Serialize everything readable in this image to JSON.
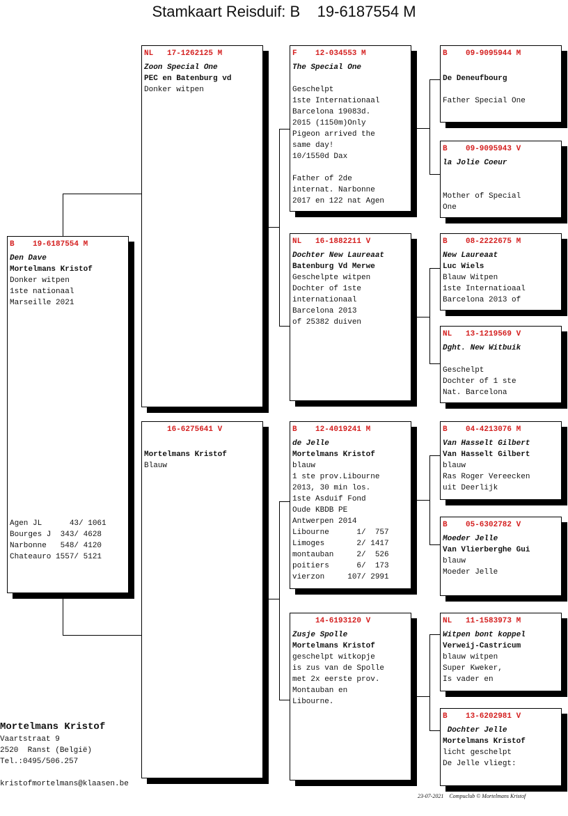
{
  "title": "Stamkaart Reisduif: B    19-6187554 M",
  "subject": {
    "country": "B",
    "ring": "19-6187554",
    "sex": "M",
    "lines": [
      {
        "t": "Den Dave",
        "s": "bi"
      },
      {
        "t": "Mortelmans Kristof",
        "s": "b"
      },
      {
        "t": "Donker witpen",
        "s": "n"
      },
      {
        "t": "1ste nationaal",
        "s": "n"
      },
      {
        "t": "Marseille 2021",
        "s": "n"
      }
    ],
    "results": [
      "Agen JL      43/ 1061",
      "Bourges J  343/ 4628",
      "Narbonne   548/ 4120",
      "Chateauro 1557/ 5121"
    ]
  },
  "sire": {
    "country": "NL",
    "ring": "17-1262125",
    "sex": "M",
    "lines": [
      {
        "t": "Zoon Special One",
        "s": "bi"
      },
      {
        "t": "PEC en Batenburg vd",
        "s": "b"
      },
      {
        "t": "Donker witpen",
        "s": "n"
      }
    ]
  },
  "dam": {
    "country": "",
    "ring": "16-6275641",
    "sex": "V",
    "lines": [
      {
        "t": "",
        "s": "n"
      },
      {
        "t": "Mortelmans Kristof",
        "s": "b"
      },
      {
        "t": "Blauw",
        "s": "n"
      }
    ]
  },
  "gen2": [
    {
      "country": "F",
      "ring": "12-034553",
      "sex": "M",
      "lines": [
        {
          "t": "The Special One",
          "s": "bi"
        },
        {
          "t": "",
          "s": "n"
        },
        {
          "t": "Geschelpt",
          "s": "n"
        },
        {
          "t": "1ste Internationaal",
          "s": "n"
        },
        {
          "t": "Barcelona 19083d.",
          "s": "n"
        },
        {
          "t": "2015 (1150m)Only",
          "s": "n"
        },
        {
          "t": "Pigeon arrived the",
          "s": "n"
        },
        {
          "t": "same day!",
          "s": "n"
        },
        {
          "t": "10/1550d Dax",
          "s": "n"
        },
        {
          "t": "",
          "s": "n"
        },
        {
          "t": "Father of 2de",
          "s": "n"
        },
        {
          "t": "internat. Narbonne",
          "s": "n"
        },
        {
          "t": "2017 en 122 nat Agen",
          "s": "n"
        }
      ]
    },
    {
      "country": "NL",
      "ring": "16-1882211",
      "sex": "V",
      "lines": [
        {
          "t": "Dochter New Laureaat",
          "s": "bi"
        },
        {
          "t": "Batenburg Vd Merwe",
          "s": "b"
        },
        {
          "t": "Geschelpte witpen",
          "s": "n"
        },
        {
          "t": "Dochter of 1ste",
          "s": "n"
        },
        {
          "t": "internationaal",
          "s": "n"
        },
        {
          "t": "Barcelona 2013",
          "s": "n"
        },
        {
          "t": "of 25382 duiven",
          "s": "n"
        }
      ]
    },
    {
      "country": "B",
      "ring": "12-4019241",
      "sex": "M",
      "lines": [
        {
          "t": "de Jelle",
          "s": "bi"
        },
        {
          "t": "Mortelmans Kristof",
          "s": "b"
        },
        {
          "t": "blauw",
          "s": "n"
        },
        {
          "t": "1 ste prov.Libourne",
          "s": "n"
        },
        {
          "t": "2013, 30 min los.",
          "s": "n"
        },
        {
          "t": "1ste Asduif Fond",
          "s": "n"
        },
        {
          "t": "Oude KBDB PE",
          "s": "n"
        },
        {
          "t": "Antwerpen 2014",
          "s": "n"
        },
        {
          "t": "Libourne      1/  757",
          "s": "n"
        },
        {
          "t": "Limoges       2/ 1417",
          "s": "n"
        },
        {
          "t": "montauban     2/  526",
          "s": "n"
        },
        {
          "t": "poitiers      6/  173",
          "s": "n"
        },
        {
          "t": "vierzon     107/ 2991",
          "s": "n"
        }
      ]
    },
    {
      "country": "",
      "ring": "14-6193120",
      "sex": "V",
      "lines": [
        {
          "t": "Zusje Spolle",
          "s": "bi"
        },
        {
          "t": "Mortelmans Kristof",
          "s": "b"
        },
        {
          "t": "geschelpt witkopje",
          "s": "n"
        },
        {
          "t": "is zus van de Spolle",
          "s": "n"
        },
        {
          "t": "met 2x eerste prov.",
          "s": "n"
        },
        {
          "t": "Montauban en",
          "s": "n"
        },
        {
          "t": "Libourne.",
          "s": "n"
        }
      ]
    }
  ],
  "gen3": [
    {
      "country": "B",
      "ring": "09-9095944",
      "sex": "M",
      "lines": [
        {
          "t": "",
          "s": "n"
        },
        {
          "t": "De Deneufbourg",
          "s": "b"
        },
        {
          "t": "",
          "s": "n"
        },
        {
          "t": "Father Special One",
          "s": "n"
        }
      ]
    },
    {
      "country": "B",
      "ring": "09-9095943",
      "sex": "V",
      "lines": [
        {
          "t": "la Jolie Coeur",
          "s": "bi"
        },
        {
          "t": "",
          "s": "n"
        },
        {
          "t": "",
          "s": "n"
        },
        {
          "t": "Mother of Special",
          "s": "n"
        },
        {
          "t": "One",
          "s": "n"
        }
      ]
    },
    {
      "country": "B",
      "ring": "08-2222675",
      "sex": "M",
      "lines": [
        {
          "t": "New Laureaat",
          "s": "bi"
        },
        {
          "t": "Luc Wiels",
          "s": "b"
        },
        {
          "t": "Blauw Witpen",
          "s": "n"
        },
        {
          "t": "1ste Internatioaal",
          "s": "n"
        },
        {
          "t": "Barcelona 2013 of",
          "s": "n"
        }
      ]
    },
    {
      "country": "NL",
      "ring": "13-1219569",
      "sex": "V",
      "lines": [
        {
          "t": "Dght. New Witbuik",
          "s": "bi"
        },
        {
          "t": "",
          "s": "n"
        },
        {
          "t": "Geschelpt",
          "s": "n"
        },
        {
          "t": "Dochter of 1 ste",
          "s": "n"
        },
        {
          "t": "Nat. Barcelona",
          "s": "n"
        }
      ]
    },
    {
      "country": "B",
      "ring": "04-4213076",
      "sex": "M",
      "lines": [
        {
          "t": "Van Hasselt Gilbert",
          "s": "bi"
        },
        {
          "t": "Van Hasselt Gilbert",
          "s": "b"
        },
        {
          "t": "blauw",
          "s": "n"
        },
        {
          "t": "Ras Roger Vereecken",
          "s": "n"
        },
        {
          "t": "uit Deerlijk",
          "s": "n"
        }
      ]
    },
    {
      "country": "B",
      "ring": "05-6302782",
      "sex": "V",
      "lines": [
        {
          "t": "Moeder Jelle",
          "s": "bi"
        },
        {
          "t": "Van Vlierberghe Gui",
          "s": "b"
        },
        {
          "t": "blauw",
          "s": "n"
        },
        {
          "t": "Moeder Jelle",
          "s": "n"
        }
      ]
    },
    {
      "country": "NL",
      "ring": "11-1583973",
      "sex": "M",
      "lines": [
        {
          "t": "Witpen bont koppel",
          "s": "bi"
        },
        {
          "t": "Verweij-Castricum",
          "s": "b"
        },
        {
          "t": "blauw witpen",
          "s": "n"
        },
        {
          "t": "Super Kweker,",
          "s": "n"
        },
        {
          "t": "Is vader en",
          "s": "n"
        }
      ]
    },
    {
      "country": "B",
      "ring": "13-6202981",
      "sex": "V",
      "lines": [
        {
          "t": " Dochter Jelle",
          "s": "bi"
        },
        {
          "t": "Mortelmans Kristof",
          "s": "b"
        },
        {
          "t": "licht geschelpt",
          "s": "n"
        },
        {
          "t": "De Jelle vliegt:",
          "s": "n"
        }
      ]
    }
  ],
  "owner": {
    "name": "Mortelmans Kristof",
    "street": "Vaartstraat 9",
    "city": "2520  Ranst (België)",
    "phone": "Tel.:0495/506.257",
    "email": "kristofmortelmans@klaasen.be"
  },
  "footer": {
    "date": "23-07-2021",
    "credit": "Compuclub © Mortelmans Kristof"
  },
  "colors": {
    "ring_header": "#d42020",
    "text": "#111111",
    "shadow": "#000000"
  }
}
